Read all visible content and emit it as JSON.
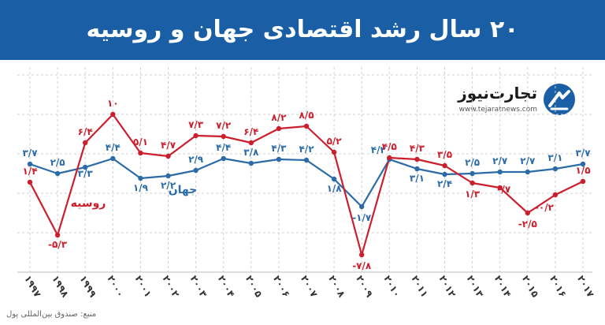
{
  "header": {
    "title": "۲۰ سال رشد اقتصادی جهان و روسیه"
  },
  "brand": {
    "name": "تجارت‌نیوز",
    "url": "www.tejaratnews.com"
  },
  "source": "منبع: صندوق بین‌المللی پول",
  "colors": {
    "header_bg": "#1a5fa6",
    "world": "#2b6ca8",
    "russia": "#cc1f2d",
    "grid": "#c8c8c8"
  },
  "chart_data": {
    "type": "line",
    "title": "۲۰ سال رشد اقتصادی جهان و روسیه",
    "x": [
      1997,
      1998,
      1999,
      2000,
      2001,
      2002,
      2003,
      2004,
      2005,
      2006,
      2007,
      2008,
      2009,
      2010,
      2011,
      2012,
      2013,
      2014,
      2015,
      2016,
      2017
    ],
    "x_labels": [
      "۱۹۹۷",
      "۱۹۹۸",
      "۱۹۹۹",
      "۲۰۰۰",
      "۲۰۰۱",
      "۲۰۰۲",
      "۲۰۰۳",
      "۲۰۰۴",
      "۲۰۰۵",
      "۲۰۰۶",
      "۲۰۰۷",
      "۲۰۰۸",
      "۲۰۰۹",
      "۲۰۱۰",
      "۲۰۱۱",
      "۲۰۱۲",
      "۲۰۱۳",
      "۲۰۱۴",
      "۲۰۱۵",
      "۲۰۱۶",
      "۲۰۱۷"
    ],
    "ylim": [
      -10,
      15
    ],
    "grid": true,
    "series": [
      {
        "name": "جهان",
        "color": "#2b6ca8",
        "values": [
          3.7,
          2.5,
          3.3,
          4.4,
          1.9,
          2.2,
          2.9,
          4.4,
          3.8,
          4.3,
          4.2,
          1.8,
          -1.7,
          4.3,
          3.1,
          2.4,
          2.5,
          2.7,
          2.7,
          3.1,
          3.7
        ],
        "labels": [
          "۳/۷",
          "۲/۵",
          "۳/۳",
          "۴/۴",
          "۱/۹",
          "۲/۲",
          "۲/۹",
          "۴/۴",
          "۳/۸",
          "۴/۳",
          "۴/۲",
          "۱/۸",
          "-۱/۷",
          "۴/۳",
          "۳/۱",
          "۲/۴",
          "۲/۵",
          "۲/۷",
          "۲/۷",
          "۳/۱",
          "۳/۷"
        ]
      },
      {
        "name": "روسیه",
        "color": "#cc1f2d",
        "values": [
          1.4,
          -5.3,
          6.4,
          10,
          5.1,
          4.7,
          7.3,
          7.2,
          6.4,
          8.2,
          8.5,
          5.2,
          -7.8,
          4.5,
          4.3,
          3.5,
          1.3,
          0.7,
          -2.5,
          -0.2,
          1.5
        ],
        "labels": [
          "۱/۴",
          "-۵/۳",
          "۶/۴",
          "۱۰",
          "۵/۱",
          "۴/۷",
          "۷/۳",
          "۷/۲",
          "۶/۴",
          "۸/۲",
          "۸/۵",
          "۵/۲",
          "-۷/۸",
          "۴/۵",
          "۴/۳",
          "۳/۵",
          "۱/۳",
          "۰/۷",
          "-۲/۵",
          "-۰/۲",
          "۱/۵"
        ]
      }
    ]
  }
}
